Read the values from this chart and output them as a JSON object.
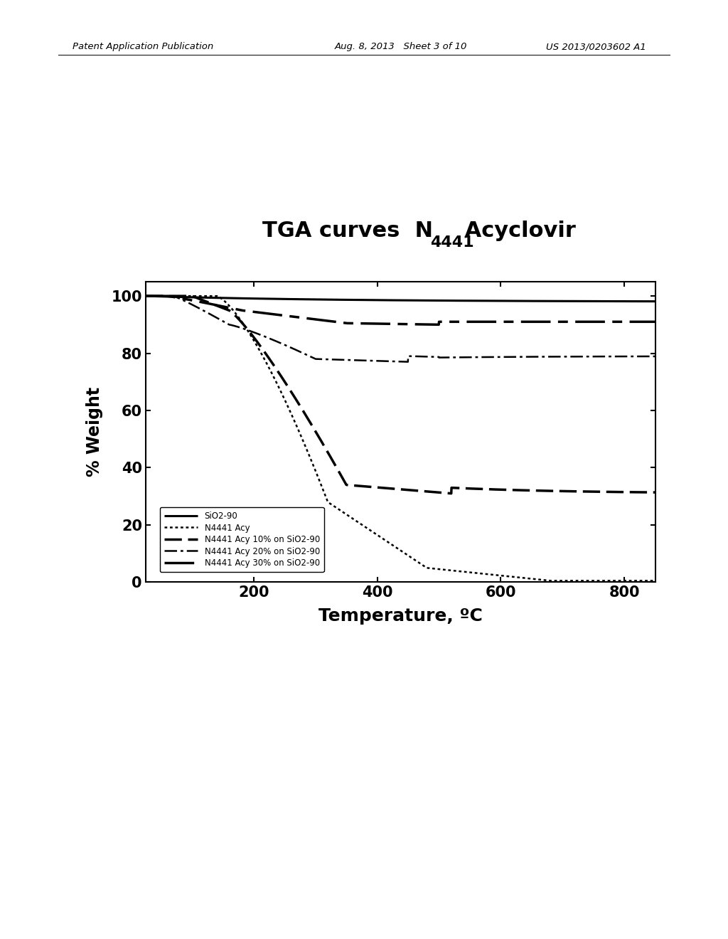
{
  "xlabel": "Temperature, ºC",
  "ylabel": "% Weight",
  "xlim": [
    25,
    850
  ],
  "ylim": [
    0,
    105
  ],
  "xticks": [
    200,
    400,
    600,
    800
  ],
  "yticks": [
    0,
    20,
    40,
    60,
    80,
    100
  ],
  "background_color": "#ffffff",
  "header_left": "Patent Application Publication",
  "header_mid": "Aug. 8, 2013   Sheet 3 of 10",
  "header_right": "US 2013/0203602 A1",
  "legend_labels": [
    "SiO2-90",
    "N4441 Acy",
    "N4441 Acy 10% on SiO2-90",
    "N4441 Acy 20% on SiO2-90",
    "N4441 Acy 30% on SiO2-90"
  ]
}
